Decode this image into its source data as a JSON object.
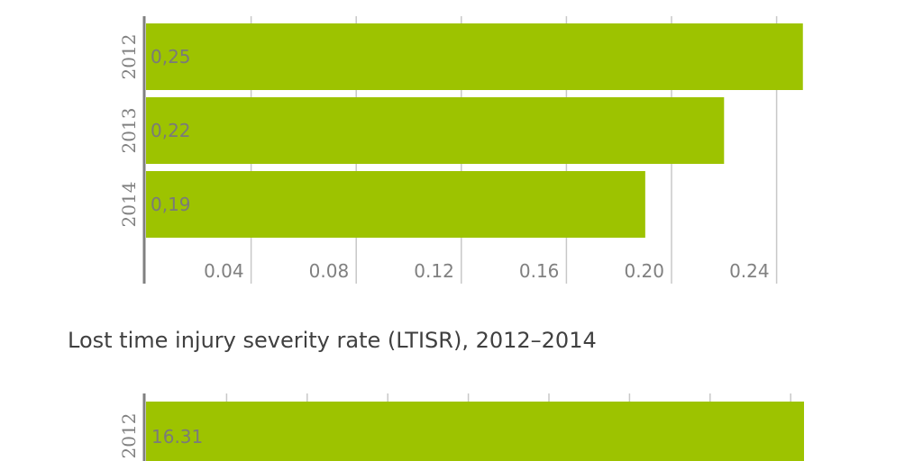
{
  "chart_data": [
    {
      "type": "bar",
      "orientation": "horizontal",
      "categories": [
        "2012",
        "2013",
        "2014"
      ],
      "values": [
        0.25,
        0.22,
        0.19
      ],
      "data_labels": [
        "0,25",
        "0,22",
        "0,19"
      ],
      "xticks": [
        0.04,
        0.08,
        0.12,
        0.16,
        0.2,
        0.24
      ],
      "xtick_labels": [
        "0.04",
        "0.08",
        "0.12",
        "0.16",
        "0.20",
        "0.24"
      ],
      "xlim": [
        0,
        0.25
      ],
      "grid": true,
      "color": "#9dc300"
    },
    {
      "type": "bar",
      "orientation": "horizontal",
      "title": "Lost time injury severity rate (LTISR), 2012–2014",
      "categories": [
        "2012"
      ],
      "values": [
        16.31
      ],
      "data_labels": [
        "16.31"
      ],
      "grid": true,
      "color": "#9dc300"
    }
  ]
}
